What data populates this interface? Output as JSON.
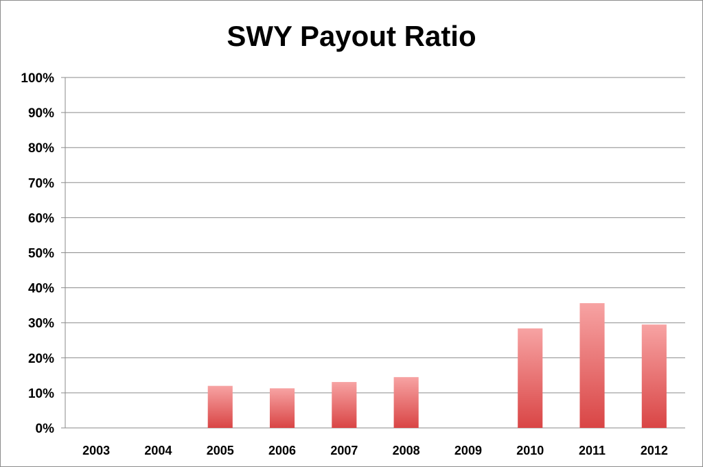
{
  "chart_data": {
    "type": "bar",
    "title": "SWY Payout Ratio",
    "xlabel": "",
    "ylabel": "",
    "categories": [
      "2003",
      "2004",
      "2005",
      "2006",
      "2007",
      "2008",
      "2009",
      "2010",
      "2011",
      "2012"
    ],
    "values": [
      0,
      0,
      12,
      11.3,
      13.1,
      14.5,
      0,
      28.4,
      35.6,
      29.5
    ],
    "ylim": [
      0,
      100
    ],
    "yticks": [
      "0%",
      "10%",
      "20%",
      "30%",
      "40%",
      "50%",
      "60%",
      "70%",
      "80%",
      "90%",
      "100%"
    ],
    "grid": true,
    "legend": "none",
    "colors": {
      "bar_top": "#f7a3a3",
      "bar_bottom": "#d94545",
      "gridline": "#8a8a8a"
    }
  }
}
